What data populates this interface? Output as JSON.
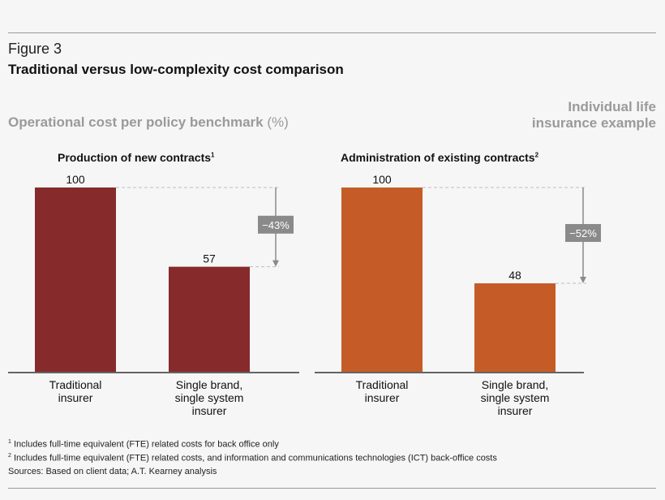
{
  "figure_label": "Figure 3",
  "figure_title": "Traditional versus low-complexity cost comparison",
  "subtitle_main": "Operational cost per policy benchmark",
  "subtitle_unit": "(%)",
  "example_lines": [
    "Individual life",
    "insurance example"
  ],
  "colors": {
    "left_bar": "#862a2b",
    "right_bar": "#c55c27",
    "callout": "#8a8a8a"
  },
  "chart_data": [
    {
      "type": "bar",
      "title": "Production of new contracts",
      "title_note": "1",
      "categories": [
        [
          "Traditional",
          "insurer"
        ],
        [
          "Single brand,",
          "single system",
          "insurer"
        ]
      ],
      "values": [
        100,
        57
      ],
      "value_labels": [
        "100",
        "57"
      ],
      "change_label": "−43%",
      "ylim": [
        0,
        100
      ]
    },
    {
      "type": "bar",
      "title": "Administration of existing contracts",
      "title_note": "2",
      "categories": [
        [
          "Traditional",
          "insurer"
        ],
        [
          "Single brand,",
          "single system",
          "insurer"
        ]
      ],
      "values": [
        100,
        48
      ],
      "value_labels": [
        "100",
        "48"
      ],
      "change_label": "−52%",
      "ylim": [
        0,
        100
      ]
    }
  ],
  "notes": [
    {
      "marker": "1",
      "text": "Includes full-time equivalent (FTE) related costs for back office only"
    },
    {
      "marker": "2",
      "text": "Includes full-time equivalent (FTE) related costs, and information and communications technologies (ICT) back-office costs"
    },
    {
      "marker": "",
      "text": "Sources: Based on client data; A.T. Kearney analysis"
    }
  ]
}
